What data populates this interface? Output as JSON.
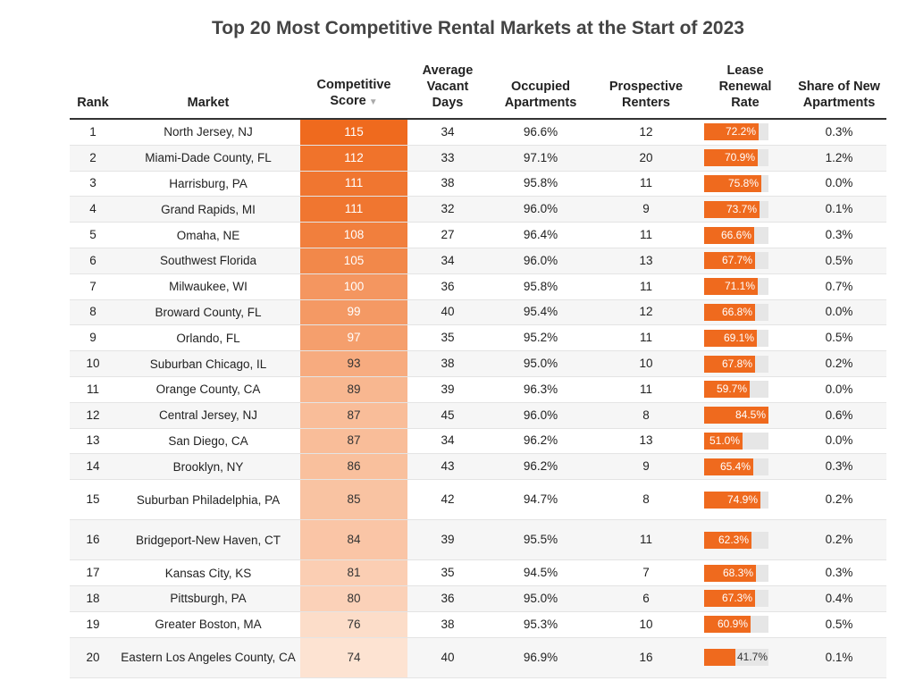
{
  "title": "Top 20 Most Competitive Rental Markets at the Start of 2023",
  "columns": {
    "rank": "Rank",
    "market": "Market",
    "score": "Competitive Score",
    "vacant": "Average Vacant Days",
    "occupied": "Occupied Apartments",
    "renters": "Prospective Renters",
    "renewal": "Lease Renewal Rate",
    "new_apts": "Share of New Apartments"
  },
  "sort_indicator": "▼",
  "colors": {
    "accent": "#ef6a1e",
    "score_high": "#ef6a1e",
    "score_low": "#fde3d2"
  },
  "chart_data": {
    "type": "table",
    "title": "Top 20 Most Competitive Rental Markets at the Start of 2023",
    "sorted_by": "Competitive Score",
    "rows": [
      {
        "rank": "1",
        "market": "North Jersey, NJ",
        "score": 115,
        "vacant": "34",
        "occupied": "96.6%",
        "renters": "12",
        "renewal": 72.2,
        "new_apts": "0.3%"
      },
      {
        "rank": "2",
        "market": "Miami-Dade County, FL",
        "score": 112,
        "vacant": "33",
        "occupied": "97.1%",
        "renters": "20",
        "renewal": 70.9,
        "new_apts": "1.2%"
      },
      {
        "rank": "3",
        "market": "Harrisburg, PA",
        "score": 111,
        "vacant": "38",
        "occupied": "95.8%",
        "renters": "11",
        "renewal": 75.8,
        "new_apts": "0.0%"
      },
      {
        "rank": "4",
        "market": "Grand Rapids, MI",
        "score": 111,
        "vacant": "32",
        "occupied": "96.0%",
        "renters": "9",
        "renewal": 73.7,
        "new_apts": "0.1%"
      },
      {
        "rank": "5",
        "market": "Omaha, NE",
        "score": 108,
        "vacant": "27",
        "occupied": "96.4%",
        "renters": "11",
        "renewal": 66.6,
        "new_apts": "0.3%"
      },
      {
        "rank": "6",
        "market": "Southwest Florida",
        "score": 105,
        "vacant": "34",
        "occupied": "96.0%",
        "renters": "13",
        "renewal": 67.7,
        "new_apts": "0.5%"
      },
      {
        "rank": "7",
        "market": "Milwaukee, WI",
        "score": 100,
        "vacant": "36",
        "occupied": "95.8%",
        "renters": "11",
        "renewal": 71.1,
        "new_apts": "0.7%"
      },
      {
        "rank": "8",
        "market": "Broward County, FL",
        "score": 99,
        "vacant": "40",
        "occupied": "95.4%",
        "renters": "12",
        "renewal": 66.8,
        "new_apts": "0.0%"
      },
      {
        "rank": "9",
        "market": "Orlando, FL",
        "score": 97,
        "vacant": "35",
        "occupied": "95.2%",
        "renters": "11",
        "renewal": 69.1,
        "new_apts": "0.5%"
      },
      {
        "rank": "10",
        "market": "Suburban Chicago, IL",
        "score": 93,
        "vacant": "38",
        "occupied": "95.0%",
        "renters": "10",
        "renewal": 67.8,
        "new_apts": "0.2%"
      },
      {
        "rank": "11",
        "market": "Orange County, CA",
        "score": 89,
        "vacant": "39",
        "occupied": "96.3%",
        "renters": "11",
        "renewal": 59.7,
        "new_apts": "0.0%"
      },
      {
        "rank": "12",
        "market": "Central Jersey, NJ",
        "score": 87,
        "vacant": "45",
        "occupied": "96.0%",
        "renters": "8",
        "renewal": 84.5,
        "new_apts": "0.6%"
      },
      {
        "rank": "13",
        "market": "San Diego, CA",
        "score": 87,
        "vacant": "34",
        "occupied": "96.2%",
        "renters": "13",
        "renewal": 51.0,
        "new_apts": "0.0%"
      },
      {
        "rank": "14",
        "market": "Brooklyn, NY",
        "score": 86,
        "vacant": "43",
        "occupied": "96.2%",
        "renters": "9",
        "renewal": 65.4,
        "new_apts": "0.3%"
      },
      {
        "rank": "15",
        "market": "Suburban Philadelphia, PA",
        "score": 85,
        "vacant": "42",
        "occupied": "94.7%",
        "renters": "8",
        "renewal": 74.9,
        "new_apts": "0.2%"
      },
      {
        "rank": "16",
        "market": "Bridgeport-New Haven, CT",
        "score": 84,
        "vacant": "39",
        "occupied": "95.5%",
        "renters": "11",
        "renewal": 62.3,
        "new_apts": "0.2%"
      },
      {
        "rank": "17",
        "market": "Kansas City, KS",
        "score": 81,
        "vacant": "35",
        "occupied": "94.5%",
        "renters": "7",
        "renewal": 68.3,
        "new_apts": "0.3%"
      },
      {
        "rank": "18",
        "market": "Pittsburgh, PA",
        "score": 80,
        "vacant": "36",
        "occupied": "95.0%",
        "renters": "6",
        "renewal": 67.3,
        "new_apts": "0.4%"
      },
      {
        "rank": "19",
        "market": "Greater Boston, MA",
        "score": 76,
        "vacant": "38",
        "occupied": "95.3%",
        "renters": "10",
        "renewal": 60.9,
        "new_apts": "0.5%"
      },
      {
        "rank": "20",
        "market": "Eastern Los Angeles County, CA",
        "score": 74,
        "vacant": "40",
        "occupied": "96.9%",
        "renters": "16",
        "renewal": 41.7,
        "new_apts": "0.1%"
      }
    ]
  }
}
